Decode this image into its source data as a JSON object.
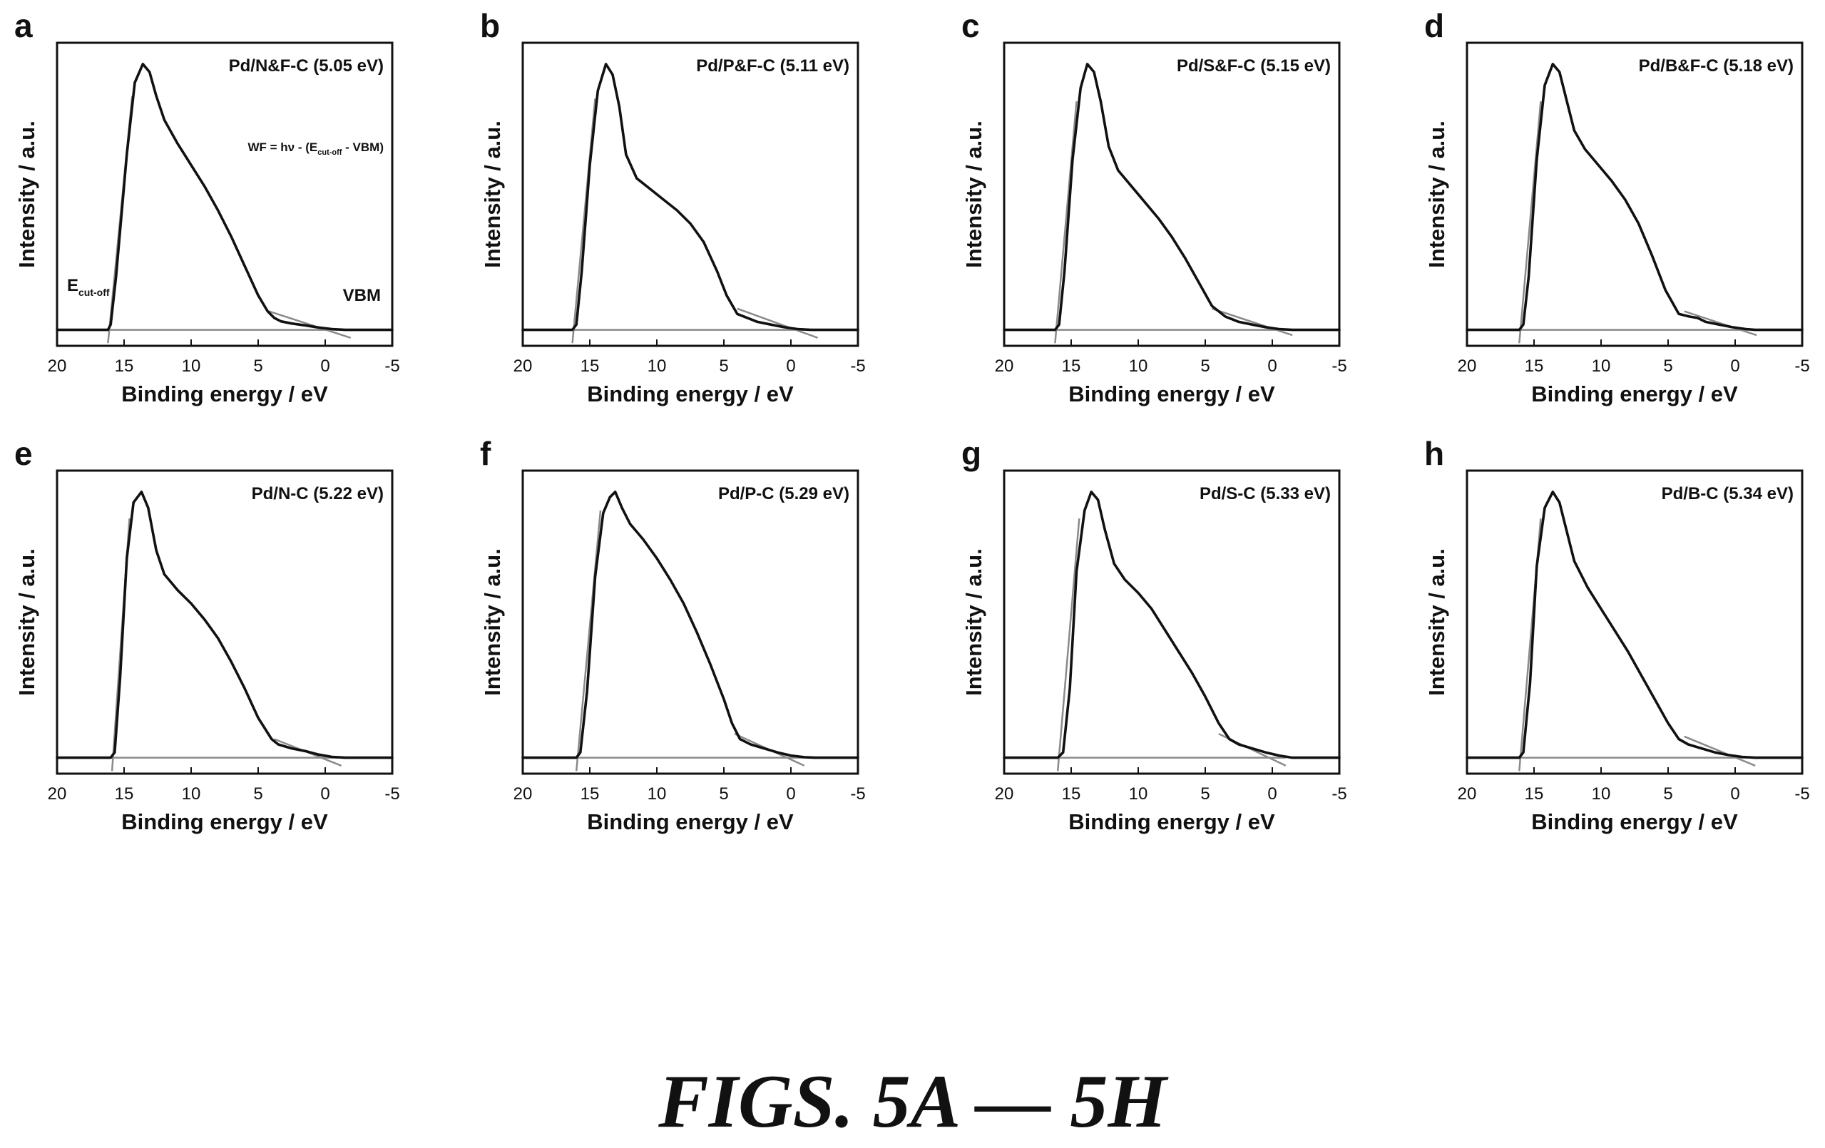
{
  "figure_caption": "FIGS. 5A — 5H",
  "colors": {
    "spectrum": "#111111",
    "fit_line": "#8a8a8a",
    "axis": "#111111"
  },
  "chart_data": [
    {
      "type": "line",
      "panel_letter": "a",
      "title": "Pd/N&F-C (5.05 eV)",
      "xlabel": "Binding energy / eV",
      "ylabel": "Intensity / a.u.",
      "xlim": [
        20,
        -5
      ],
      "xticks": [
        20,
        15,
        10,
        5,
        0,
        -5
      ],
      "ylim": [
        -0.06,
        1.08
      ],
      "annotations": {
        "formula": "WF = hν - (E",
        "formula_sub": "cut-off",
        "formula_tail": " - VBM)",
        "ecut": "E",
        "ecut_sub": "cut-off",
        "vbm": "VBM"
      },
      "series": [
        {
          "x": [
            20,
            16.2,
            16.0,
            15.6,
            14.8,
            14.2,
            13.6,
            13.1,
            12.6,
            12.0,
            11.0,
            10.0,
            9.0,
            8.0,
            7.0,
            6.0,
            5.0,
            4.3,
            3.8,
            3.3,
            2.5,
            1.5,
            0.5,
            -0.5,
            -1.5,
            -3,
            -5
          ],
          "y": [
            0,
            0,
            0.02,
            0.2,
            0.66,
            0.93,
            1.0,
            0.97,
            0.88,
            0.79,
            0.7,
            0.62,
            0.54,
            0.45,
            0.35,
            0.24,
            0.13,
            0.07,
            0.045,
            0.032,
            0.024,
            0.017,
            0.009,
            0.003,
            0,
            0,
            0
          ]
        }
      ],
      "fits": [
        {
          "x": [
            16.2,
            14.4
          ],
          "y": [
            -0.05,
            0.88
          ]
        },
        {
          "x": [
            4.2,
            -1.9
          ],
          "y": [
            0.07,
            -0.03
          ]
        },
        {
          "x": [
            16.5,
            -1.0
          ],
          "y": [
            0,
            0
          ]
        }
      ]
    },
    {
      "type": "line",
      "panel_letter": "b",
      "title": "Pd/P&F-C (5.11 eV)",
      "xlabel": "Binding energy / eV",
      "ylabel": "Intensity / a.u.",
      "xlim": [
        20,
        -5
      ],
      "xticks": [
        20,
        15,
        10,
        5,
        0,
        -5
      ],
      "ylim": [
        -0.06,
        1.08
      ],
      "series": [
        {
          "x": [
            20,
            16.3,
            16.0,
            15.6,
            15.0,
            14.4,
            13.8,
            13.3,
            12.8,
            12.3,
            11.5,
            10.5,
            9.5,
            8.5,
            7.5,
            6.5,
            5.5,
            4.8,
            4.0,
            3.0,
            2.5,
            1.5,
            0.5,
            -0.5,
            -1.5,
            -3,
            -5
          ],
          "y": [
            0,
            0,
            0.02,
            0.22,
            0.62,
            0.9,
            1.0,
            0.96,
            0.84,
            0.66,
            0.57,
            0.53,
            0.49,
            0.45,
            0.4,
            0.33,
            0.22,
            0.13,
            0.06,
            0.04,
            0.03,
            0.02,
            0.01,
            0.003,
            0,
            0,
            0
          ]
        }
      ],
      "fits": [
        {
          "x": [
            16.3,
            14.6
          ],
          "y": [
            -0.05,
            0.87
          ]
        },
        {
          "x": [
            4.0,
            -2.0
          ],
          "y": [
            0.08,
            -0.03
          ]
        },
        {
          "x": [
            16.5,
            -1.0
          ],
          "y": [
            0,
            0
          ]
        }
      ]
    },
    {
      "type": "line",
      "panel_letter": "c",
      "title": "Pd/S&F-C (5.15 eV)",
      "xlabel": "Binding energy / eV",
      "ylabel": "Intensity / a.u.",
      "xlim": [
        20,
        -5
      ],
      "xticks": [
        20,
        15,
        10,
        5,
        0,
        -5
      ],
      "ylim": [
        -0.06,
        1.08
      ],
      "series": [
        {
          "x": [
            20,
            16.2,
            15.9,
            15.5,
            14.9,
            14.3,
            13.8,
            13.3,
            12.8,
            12.2,
            11.5,
            10.5,
            9.5,
            8.5,
            7.5,
            6.5,
            5.5,
            4.5,
            3.5,
            3.0,
            2.5,
            1.5,
            0.5,
            -0.5,
            -1.5,
            -3,
            -5
          ],
          "y": [
            0,
            0,
            0.02,
            0.22,
            0.64,
            0.91,
            1.0,
            0.97,
            0.86,
            0.69,
            0.6,
            0.54,
            0.48,
            0.42,
            0.35,
            0.27,
            0.18,
            0.09,
            0.05,
            0.04,
            0.03,
            0.02,
            0.01,
            0.003,
            0,
            0,
            0
          ]
        }
      ],
      "fits": [
        {
          "x": [
            16.2,
            14.6
          ],
          "y": [
            -0.05,
            0.86
          ]
        },
        {
          "x": [
            4.5,
            -1.5
          ],
          "y": [
            0.08,
            -0.02
          ]
        },
        {
          "x": [
            16.5,
            -1.0
          ],
          "y": [
            0,
            0
          ]
        }
      ]
    },
    {
      "type": "line",
      "panel_letter": "d",
      "title": "Pd/B&F-C (5.18 eV)",
      "xlabel": "Binding energy / eV",
      "ylabel": "Intensity / a.u.",
      "xlim": [
        20,
        -5
      ],
      "xticks": [
        20,
        15,
        10,
        5,
        0,
        -5
      ],
      "ylim": [
        -0.06,
        1.08
      ],
      "series": [
        {
          "x": [
            20,
            16.1,
            15.8,
            15.4,
            14.8,
            14.2,
            13.6,
            13.1,
            12.6,
            12.0,
            11.2,
            10.2,
            9.2,
            8.2,
            7.2,
            6.2,
            5.2,
            4.2,
            3.4,
            2.8,
            2.2,
            1.2,
            0.2,
            -0.8,
            -1.5,
            -3,
            -5
          ],
          "y": [
            0,
            0,
            0.02,
            0.2,
            0.64,
            0.92,
            1.0,
            0.97,
            0.87,
            0.75,
            0.68,
            0.62,
            0.56,
            0.49,
            0.4,
            0.28,
            0.15,
            0.06,
            0.05,
            0.045,
            0.03,
            0.02,
            0.01,
            0.003,
            0,
            0,
            0
          ]
        }
      ],
      "fits": [
        {
          "x": [
            16.1,
            14.5
          ],
          "y": [
            -0.05,
            0.86
          ]
        },
        {
          "x": [
            3.8,
            -1.6
          ],
          "y": [
            0.07,
            -0.02
          ]
        },
        {
          "x": [
            16.5,
            -1.0
          ],
          "y": [
            0,
            0
          ]
        }
      ]
    },
    {
      "type": "line",
      "panel_letter": "e",
      "title": "Pd/N-C (5.22 eV)",
      "xlabel": "Binding energy / eV",
      "ylabel": "Intensity / a.u.",
      "xlim": [
        20,
        -5
      ],
      "xticks": [
        20,
        15,
        10,
        5,
        0,
        -5
      ],
      "ylim": [
        -0.06,
        1.08
      ],
      "series": [
        {
          "x": [
            20,
            16.0,
            15.7,
            15.3,
            14.8,
            14.3,
            13.7,
            13.2,
            12.6,
            12.0,
            11.0,
            10.0,
            9.0,
            8.0,
            7.0,
            6.0,
            5.0,
            4.0,
            3.5,
            2.5,
            1.5,
            0.5,
            -0.5,
            -1.5,
            -3,
            -5
          ],
          "y": [
            0,
            0,
            0.02,
            0.3,
            0.75,
            0.96,
            1.0,
            0.94,
            0.78,
            0.69,
            0.63,
            0.58,
            0.52,
            0.45,
            0.36,
            0.26,
            0.15,
            0.07,
            0.05,
            0.035,
            0.025,
            0.012,
            0.003,
            0,
            0,
            0
          ]
        }
      ],
      "fits": [
        {
          "x": [
            15.9,
            14.6
          ],
          "y": [
            -0.05,
            0.9
          ]
        },
        {
          "x": [
            3.8,
            -1.2
          ],
          "y": [
            0.07,
            -0.03
          ]
        },
        {
          "x": [
            16.5,
            -1.0
          ],
          "y": [
            0,
            0
          ]
        }
      ]
    },
    {
      "type": "line",
      "panel_letter": "f",
      "title": "Pd/P-C (5.29 eV)",
      "xlabel": "Binding energy / eV",
      "ylabel": "Intensity / a.u.",
      "xlim": [
        20,
        -5
      ],
      "xticks": [
        20,
        15,
        10,
        5,
        0,
        -5
      ],
      "ylim": [
        -0.06,
        1.08
      ],
      "series": [
        {
          "x": [
            20,
            16.0,
            15.7,
            15.2,
            14.6,
            14.0,
            13.5,
            13.1,
            12.6,
            12.0,
            11.0,
            10.0,
            9.0,
            8.0,
            7.0,
            6.0,
            5.0,
            4.4,
            3.8,
            3.0,
            2.0,
            1.0,
            0,
            -1,
            -1.8,
            -3,
            -5
          ],
          "y": [
            0,
            0,
            0.02,
            0.25,
            0.68,
            0.92,
            0.98,
            1.0,
            0.94,
            0.88,
            0.82,
            0.75,
            0.67,
            0.58,
            0.47,
            0.35,
            0.22,
            0.13,
            0.07,
            0.05,
            0.035,
            0.02,
            0.008,
            0.002,
            0,
            0,
            0
          ]
        }
      ],
      "fits": [
        {
          "x": [
            16.0,
            14.2
          ],
          "y": [
            -0.05,
            0.93
          ]
        },
        {
          "x": [
            4.2,
            -1.0
          ],
          "y": [
            0.09,
            -0.03
          ]
        },
        {
          "x": [
            16.5,
            -1.0
          ],
          "y": [
            0,
            0
          ]
        }
      ]
    },
    {
      "type": "line",
      "panel_letter": "g",
      "title": "Pd/S-C (5.33 eV)",
      "xlabel": "Binding energy / eV",
      "ylabel": "Intensity / a.u.",
      "xlim": [
        20,
        -5
      ],
      "xticks": [
        20,
        15,
        10,
        5,
        0,
        -5
      ],
      "ylim": [
        -0.06,
        1.08
      ],
      "series": [
        {
          "x": [
            20,
            16.0,
            15.6,
            15.1,
            14.6,
            14.0,
            13.5,
            13.0,
            12.5,
            11.8,
            11.0,
            10.0,
            9.0,
            8.0,
            7.0,
            6.0,
            5.0,
            4.0,
            3.2,
            2.5,
            1.5,
            0.5,
            -0.5,
            -1.5,
            -3,
            -5
          ],
          "y": [
            0,
            0,
            0.02,
            0.26,
            0.7,
            0.93,
            1.0,
            0.97,
            0.86,
            0.73,
            0.67,
            0.62,
            0.56,
            0.48,
            0.4,
            0.32,
            0.23,
            0.13,
            0.07,
            0.05,
            0.035,
            0.02,
            0.008,
            0,
            0,
            0
          ]
        }
      ],
      "fits": [
        {
          "x": [
            16.0,
            14.4
          ],
          "y": [
            -0.05,
            0.9
          ]
        },
        {
          "x": [
            4.0,
            -1.0
          ],
          "y": [
            0.09,
            -0.03
          ]
        },
        {
          "x": [
            16.5,
            -1.0
          ],
          "y": [
            0,
            0
          ]
        }
      ]
    },
    {
      "type": "line",
      "panel_letter": "h",
      "title": "Pd/B-C (5.34 eV)",
      "xlabel": "Binding energy / eV",
      "ylabel": "Intensity / a.u.",
      "xlim": [
        20,
        -5
      ],
      "xticks": [
        20,
        15,
        10,
        5,
        0,
        -5
      ],
      "ylim": [
        -0.06,
        1.08
      ],
      "series": [
        {
          "x": [
            20,
            16.1,
            15.8,
            15.3,
            14.8,
            14.2,
            13.6,
            13.1,
            12.6,
            12.0,
            11.0,
            10.0,
            9.0,
            8.0,
            7.0,
            6.0,
            5.0,
            4.2,
            3.5,
            2.5,
            1.5,
            0.5,
            -0.5,
            -1.5,
            -3,
            -5
          ],
          "y": [
            0,
            0,
            0.02,
            0.28,
            0.72,
            0.94,
            1.0,
            0.96,
            0.86,
            0.74,
            0.64,
            0.56,
            0.48,
            0.4,
            0.31,
            0.22,
            0.13,
            0.07,
            0.05,
            0.035,
            0.02,
            0.01,
            0.003,
            0,
            0,
            0
          ]
        }
      ],
      "fits": [
        {
          "x": [
            16.1,
            14.5
          ],
          "y": [
            -0.05,
            0.9
          ]
        },
        {
          "x": [
            3.8,
            -1.5
          ],
          "y": [
            0.08,
            -0.03
          ]
        },
        {
          "x": [
            16.5,
            -1.0
          ],
          "y": [
            0,
            0
          ]
        }
      ]
    }
  ]
}
